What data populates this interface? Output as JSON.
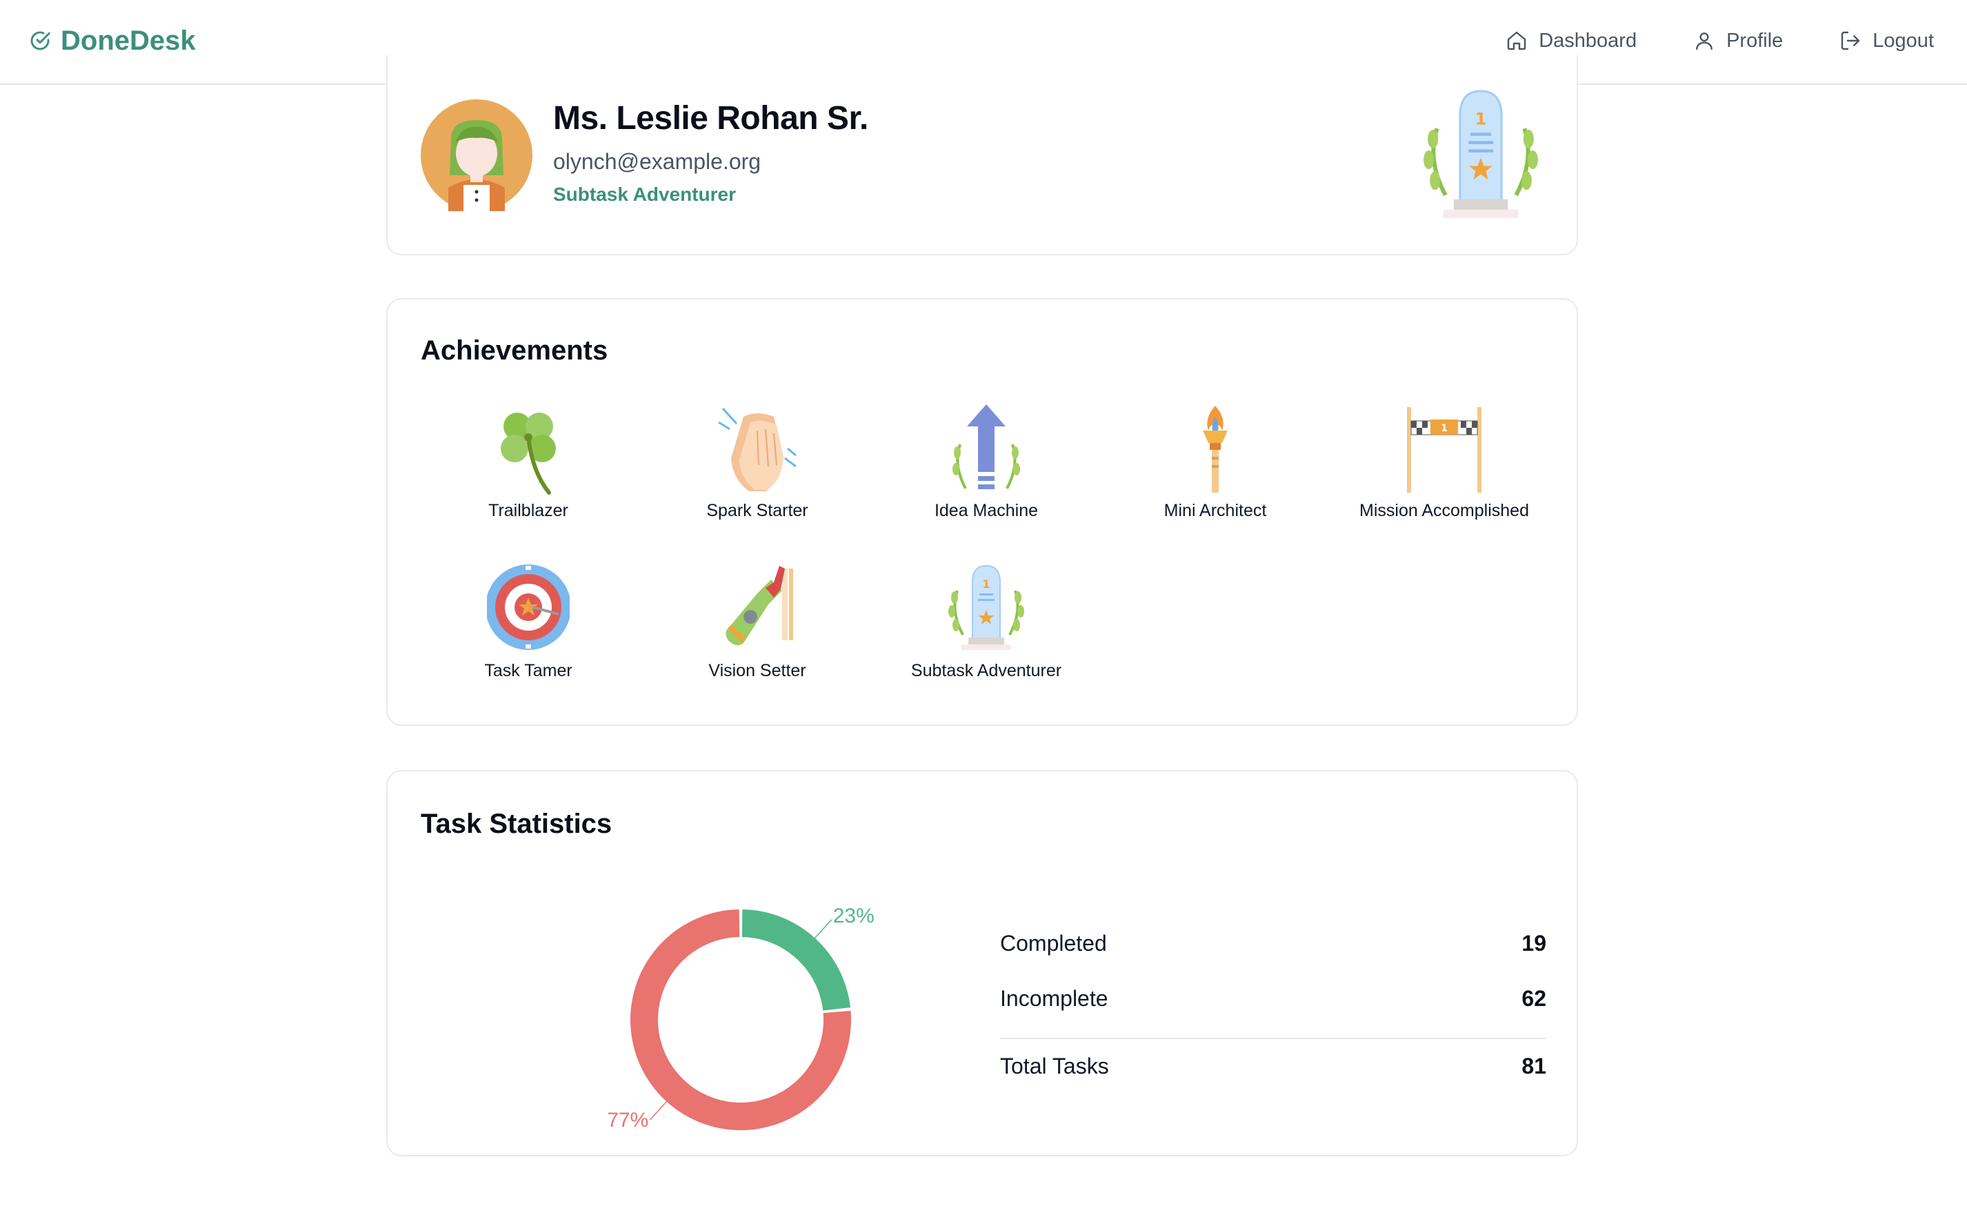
{
  "brand": {
    "name": "DoneDesk",
    "color": "#3c8f7c"
  },
  "nav": {
    "dashboard": "Dashboard",
    "profile": "Profile",
    "logout": "Logout"
  },
  "profile": {
    "name": "Ms. Leslie Rohan Sr.",
    "email": "olynch@example.org",
    "title": "Subtask Adventurer",
    "avatar_icon": "girl-avatar-icon",
    "badge_icon": "trophy-icon"
  },
  "achievements": {
    "title": "Achievements",
    "items": [
      {
        "label": "Trailblazer",
        "icon": "four-leaf-clover-icon"
      },
      {
        "label": "Spark Starter",
        "icon": "clapping-hands-icon"
      },
      {
        "label": "Idea Machine",
        "icon": "upward-arrow-laurel-icon"
      },
      {
        "label": "Mini Architect",
        "icon": "torch-icon"
      },
      {
        "label": "Mission Accomplished",
        "icon": "finish-line-icon"
      },
      {
        "label": "Task Tamer",
        "icon": "target-icon"
      },
      {
        "label": "Vision Setter",
        "icon": "champagne-icon"
      },
      {
        "label": "Subtask Adventurer",
        "icon": "trophy-icon"
      }
    ]
  },
  "stats": {
    "title": "Task Statistics",
    "rows": [
      {
        "label": "Completed",
        "value": "19"
      },
      {
        "label": "Incomplete",
        "value": "62"
      },
      {
        "label": "Total Tasks",
        "value": "81"
      }
    ],
    "colors": {
      "completed": "#52b788",
      "incomplete": "#e8736f"
    }
  },
  "chart_data": {
    "type": "pie",
    "categories": [
      "Completed",
      "Incomplete"
    ],
    "values": [
      19,
      62
    ],
    "percent_labels": [
      "23%",
      "77%"
    ],
    "colors": [
      "#52b788",
      "#e8736f"
    ]
  }
}
